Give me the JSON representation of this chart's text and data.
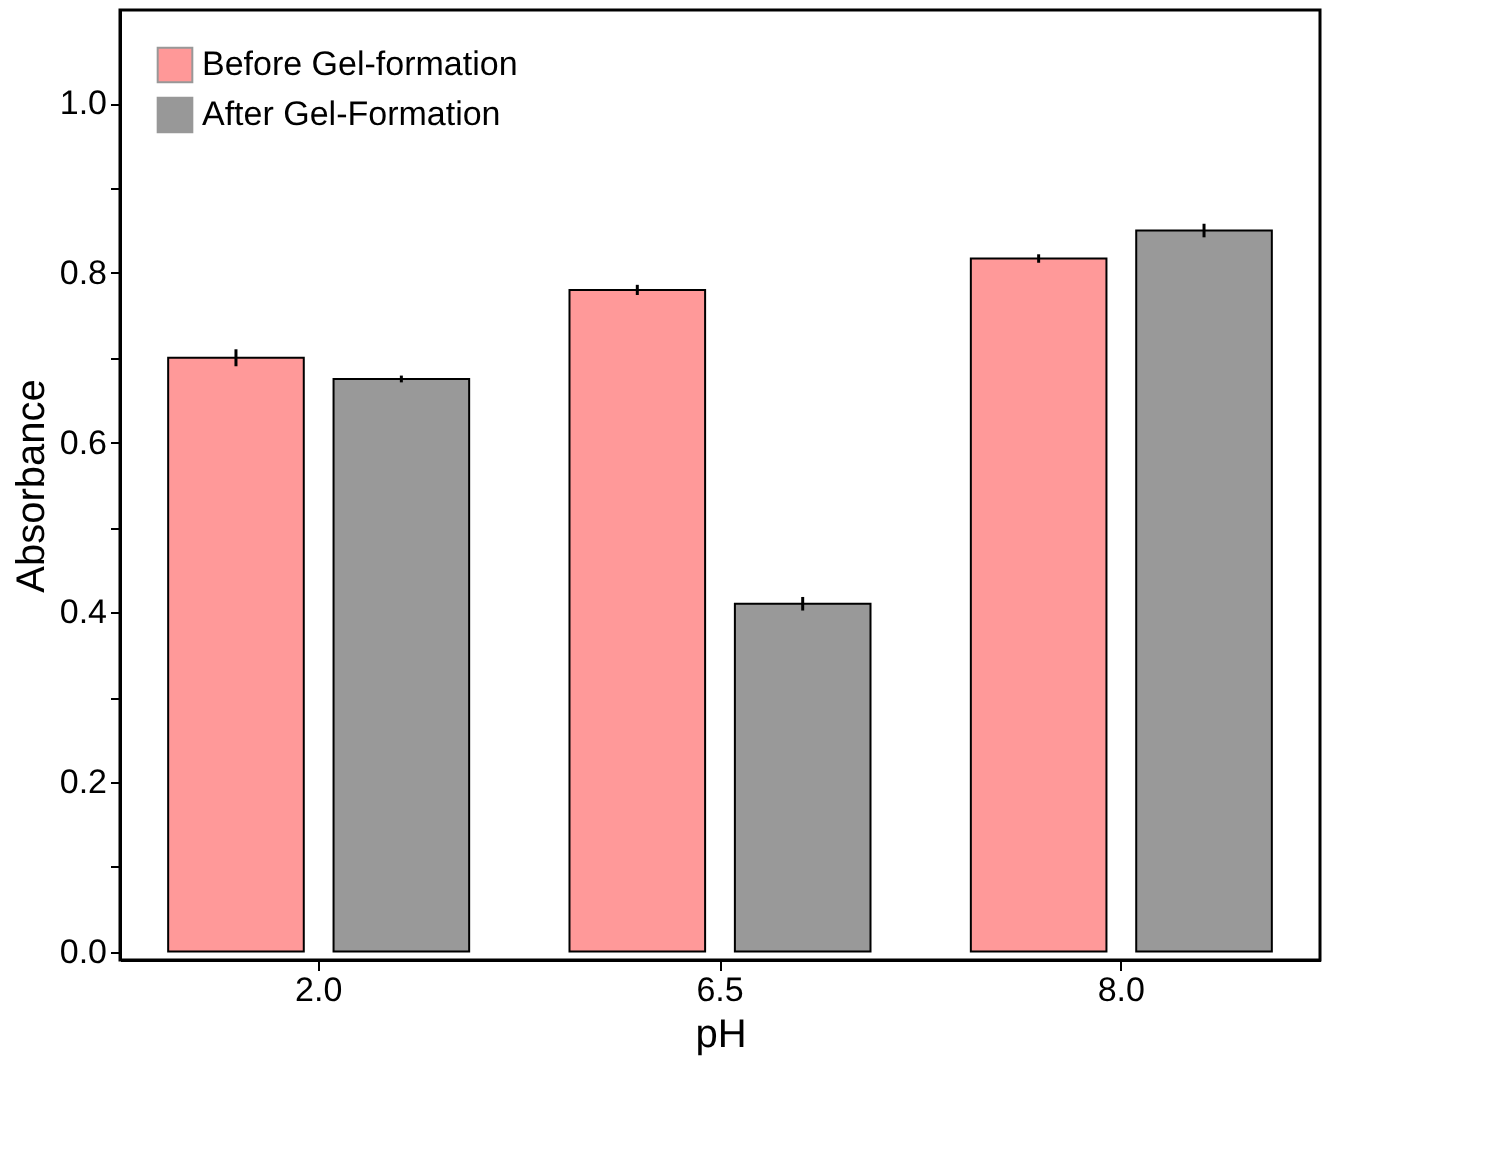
{
  "chart_data": {
    "type": "bar",
    "xlabel": "pH",
    "ylabel": "Absorbance",
    "categories": [
      "2.0",
      "6.5",
      "8.0"
    ],
    "series": [
      {
        "name": "Before Gel-formation",
        "color": "#ff0000",
        "values": [
          0.7,
          0.78,
          0.817
        ],
        "errors": [
          0.01,
          0.006,
          0.005
        ]
      },
      {
        "name": "After Gel-Formation",
        "color": "#000000",
        "values": [
          0.675,
          0.41,
          0.85
        ],
        "errors": [
          0.004,
          0.008,
          0.008
        ]
      }
    ],
    "ylim": [
      -0.01,
      1.11
    ],
    "yticks": [
      {
        "value": 0,
        "label": "0.0"
      },
      {
        "value": 0.1,
        "label": null
      },
      0.2,
      {
        "value": 0.3,
        "label": null
      },
      0.4,
      {
        "value": 0.5,
        "label": null
      },
      0.6,
      {
        "value": 0.7,
        "label": null
      },
      0.8,
      {
        "value": 0.9,
        "label": null
      },
      {
        "value": 1.0,
        "label": "1.0"
      }
    ],
    "legend": "top left",
    "grid": false
  }
}
